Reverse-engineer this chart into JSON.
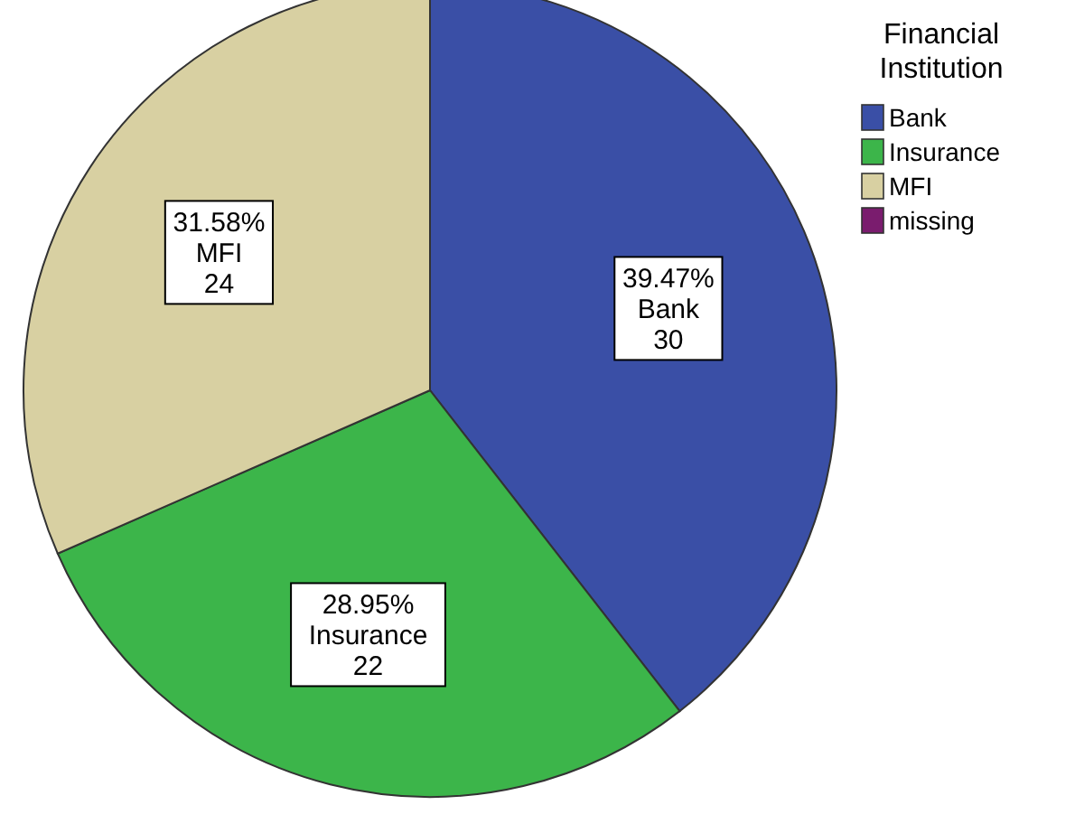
{
  "chart_data": {
    "type": "pie",
    "legend_title": "Financial\nInstitution",
    "legend": "top right",
    "categories": [
      "Bank",
      "Insurance",
      "MFI",
      "missing"
    ],
    "values": [
      30,
      22,
      24,
      0
    ],
    "colors": [
      "#3a4fa6",
      "#3cb54a",
      "#d8d0a2",
      "#7a1c6e"
    ],
    "value_labels": [
      "39.47%\nBank\n30",
      "28.95%\nInsurance\n22",
      "31.58%\nMFI\n24",
      null
    ]
  }
}
